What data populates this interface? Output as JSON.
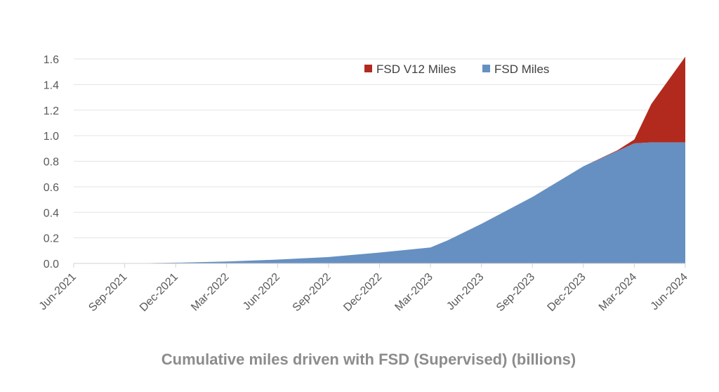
{
  "chart_data": {
    "type": "area",
    "stacked": true,
    "title": "Cumulative miles driven with FSD (Supervised) (billions)",
    "xlabel": "",
    "ylabel": "",
    "x_tick_labels": [
      "Jun-2021",
      "Sep-2021",
      "Dec-2021",
      "Mar-2022",
      "Jun-2022",
      "Sep-2022",
      "Dec-2022",
      "Mar-2023",
      "Jun-2023",
      "Sep-2023",
      "Dec-2023",
      "Mar-2024",
      "Jun-2024"
    ],
    "y_tick_labels": [
      "0.0",
      "0.2",
      "0.4",
      "0.6",
      "0.8",
      "1.0",
      "1.2",
      "1.4",
      "1.6"
    ],
    "ylim": [
      0,
      1.6
    ],
    "grid": "horizontal",
    "legend_position": "top-right",
    "x": [
      "Jun-2021",
      "Sep-2021",
      "Oct-2021",
      "Dec-2021",
      "Mar-2022",
      "Jun-2022",
      "Sep-2022",
      "Dec-2022",
      "Mar-2023",
      "Apr-2023",
      "Jun-2023",
      "Sep-2023",
      "Dec-2023",
      "Feb-2024",
      "Mar-2024",
      "Apr-2024",
      "Jun-2024"
    ],
    "series": [
      {
        "name": "FSD Miles",
        "color": "#6690C2",
        "values": [
          0,
          0,
          0.002,
          0.006,
          0.015,
          0.03,
          0.05,
          0.085,
          0.125,
          0.18,
          0.31,
          0.52,
          0.76,
          0.88,
          0.94,
          0.948,
          0.948
        ]
      },
      {
        "name": "FSD V12 Miles",
        "color": "#B22A1E",
        "values": [
          0,
          0,
          0,
          0,
          0,
          0,
          0,
          0,
          0,
          0,
          0,
          0,
          0,
          0.005,
          0.03,
          0.3,
          0.67
        ]
      }
    ]
  }
}
